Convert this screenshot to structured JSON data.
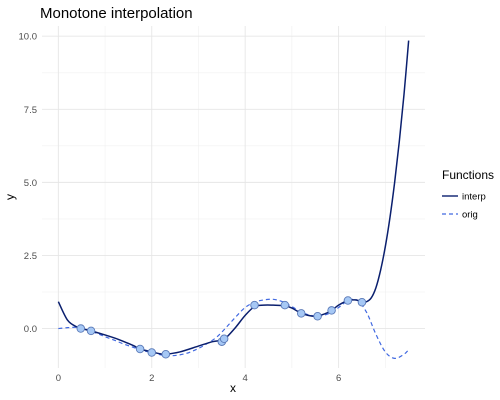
{
  "chart_data": {
    "type": "line",
    "title": "Monotone interpolation",
    "xlabel": "x",
    "ylabel": "y",
    "xlim": [
      -0.35,
      7.85
    ],
    "ylim": [
      -1.35,
      10.35
    ],
    "x_ticks": [
      0,
      2,
      4,
      6
    ],
    "x_tick_labels": [
      "0",
      "2",
      "4",
      "6"
    ],
    "y_ticks": [
      0,
      2.5,
      5,
      7.5,
      10
    ],
    "y_tick_labels": [
      "0.0",
      "2.5",
      "5.0",
      "7.5",
      "10.0"
    ],
    "grid": true,
    "legend": {
      "title": "Functions",
      "position": "right",
      "entries": [
        {
          "label": "interp",
          "color": "#0a1f6e",
          "dash": "solid"
        },
        {
          "label": "orig",
          "color": "#4169e1",
          "dash": "dashed"
        }
      ]
    },
    "series": [
      {
        "name": "interp",
        "color": "#0a1f6e",
        "style": "solid",
        "x": [
          0.0,
          0.2,
          0.4,
          0.48,
          0.6,
          0.7,
          1.0,
          1.3,
          1.6,
          1.75,
          2.0,
          2.2,
          2.3,
          2.6,
          3.0,
          3.3,
          3.5,
          3.6,
          3.8,
          4.0,
          4.2,
          4.4,
          4.6,
          4.85,
          5.0,
          5.2,
          5.35,
          5.5,
          5.7,
          5.85,
          6.0,
          6.2,
          6.35,
          6.5,
          6.6,
          6.7,
          6.8,
          6.9,
          7.0,
          7.1,
          7.2,
          7.3,
          7.4,
          7.5
        ],
        "y": [
          0.92,
          0.28,
          0.05,
          0.0,
          -0.04,
          -0.08,
          -0.22,
          -0.38,
          -0.58,
          -0.7,
          -0.8,
          -0.87,
          -0.88,
          -0.8,
          -0.6,
          -0.45,
          -0.4,
          -0.3,
          0.05,
          0.45,
          0.75,
          0.8,
          0.8,
          0.78,
          0.7,
          0.52,
          0.45,
          0.42,
          0.5,
          0.62,
          0.8,
          0.96,
          0.98,
          0.93,
          0.92,
          1.05,
          1.4,
          2.0,
          2.8,
          3.8,
          5.0,
          6.4,
          8.0,
          9.85
        ]
      },
      {
        "name": "orig",
        "color": "#4169e1",
        "style": "dashed",
        "x": [
          0.0,
          0.2,
          0.4,
          0.6,
          0.8,
          1.0,
          1.2,
          1.4,
          1.6,
          1.8,
          2.0,
          2.2,
          2.4,
          2.6,
          2.8,
          3.0,
          3.2,
          3.4,
          3.6,
          3.8,
          4.0,
          4.2,
          4.4,
          4.6,
          4.8,
          5.0,
          5.2,
          5.4,
          5.6,
          5.8,
          6.0,
          6.2,
          6.4,
          6.6,
          6.8,
          7.0,
          7.2,
          7.4,
          7.5
        ],
        "y": [
          0.0,
          0.03,
          0.04,
          -0.03,
          -0.15,
          -0.28,
          -0.4,
          -0.53,
          -0.64,
          -0.75,
          -0.82,
          -0.9,
          -0.93,
          -0.9,
          -0.82,
          -0.68,
          -0.5,
          -0.28,
          0.05,
          0.4,
          0.72,
          0.9,
          0.98,
          1.0,
          0.92,
          0.75,
          0.57,
          0.45,
          0.43,
          0.52,
          0.72,
          0.95,
          0.97,
          0.55,
          -0.2,
          -0.8,
          -1.02,
          -0.88,
          -0.72
        ]
      }
    ],
    "points": {
      "name": "knots",
      "fill": "#a6c8f5",
      "stroke": "#5b7ab8",
      "x": [
        0.48,
        0.7,
        1.75,
        2.0,
        2.3,
        3.5,
        3.55,
        4.2,
        4.85,
        5.2,
        5.55,
        5.85,
        6.2,
        6.5
      ],
      "y": [
        0.0,
        -0.08,
        -0.7,
        -0.82,
        -0.88,
        -0.45,
        -0.35,
        0.8,
        0.8,
        0.52,
        0.42,
        0.62,
        0.96,
        0.9
      ]
    }
  }
}
